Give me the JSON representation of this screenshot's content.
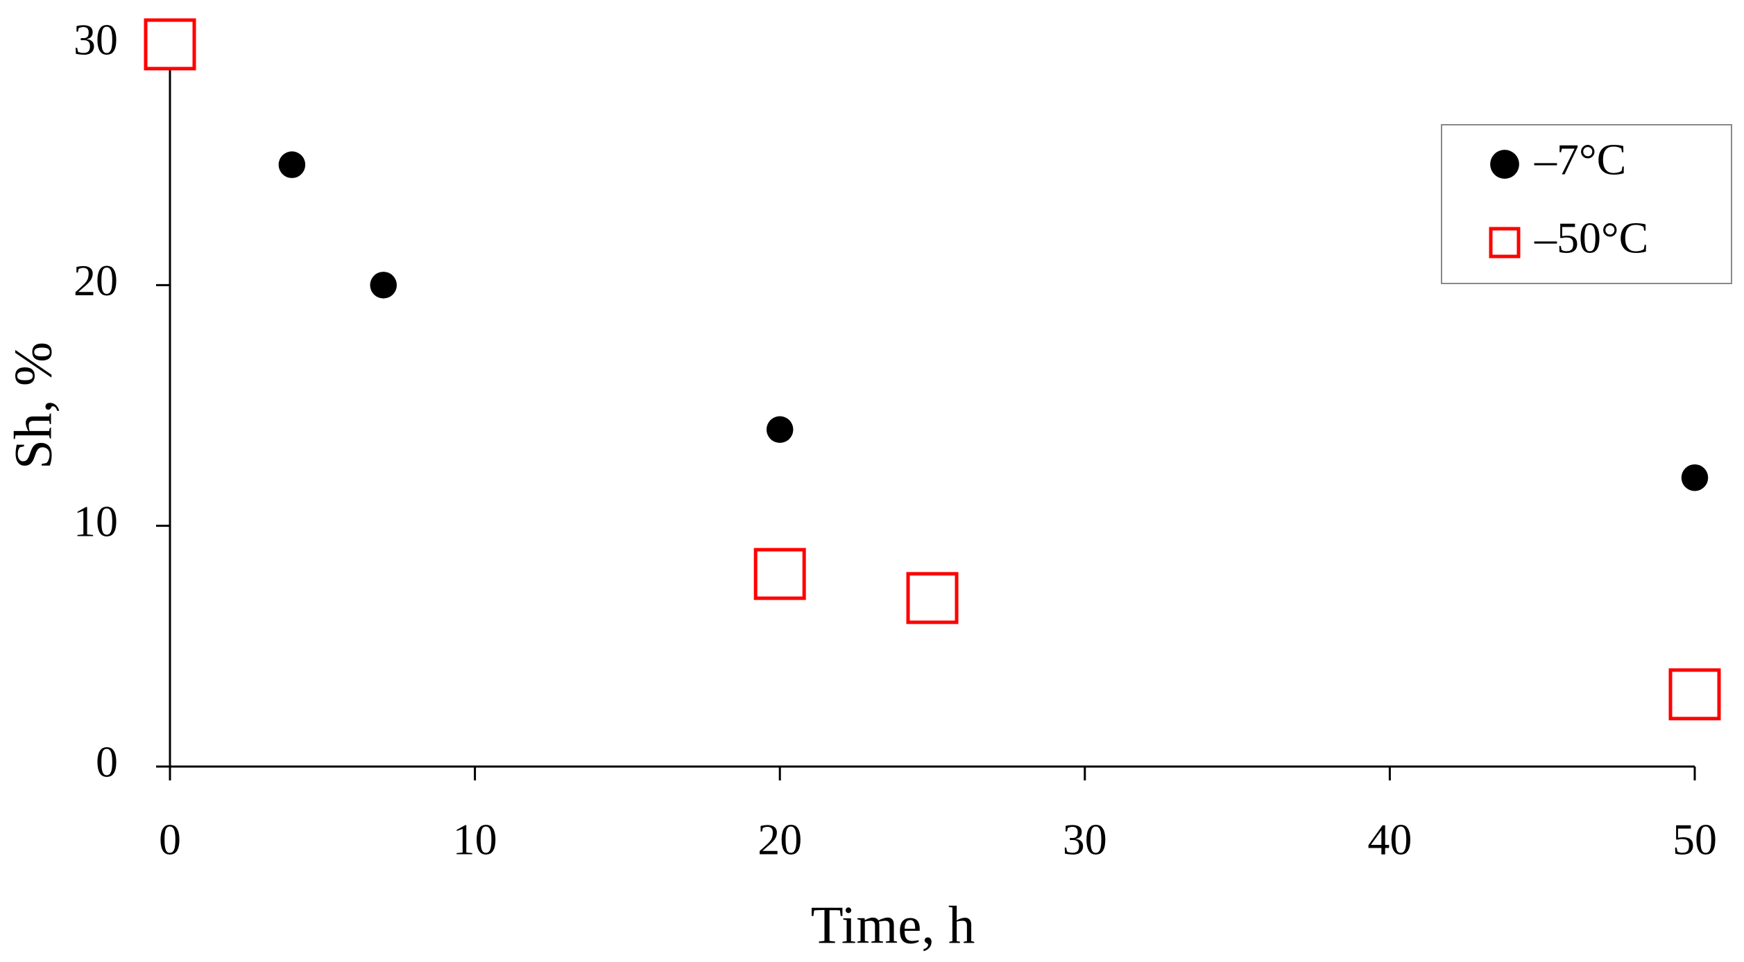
{
  "chart_data": {
    "type": "scatter",
    "x_label": "Time, h",
    "y_label": "Sh, %",
    "xlim": [
      0,
      50
    ],
    "xticks": [
      0,
      10,
      20,
      30,
      40,
      50
    ],
    "ylim": [
      0,
      30
    ],
    "yticks": [
      0,
      10,
      20,
      30
    ],
    "grid": false,
    "legend": "upper right",
    "series": [
      {
        "name": "–7°C",
        "color": "#000000",
        "marker": "circle",
        "x": [
          0,
          4,
          7,
          20,
          50
        ],
        "values": [
          30,
          25,
          20,
          14,
          12
        ]
      },
      {
        "name": "–50°C",
        "color": "#ff0000",
        "marker": "square",
        "x": [
          0,
          20,
          25,
          50
        ],
        "values": [
          30,
          8,
          7,
          3
        ]
      }
    ]
  }
}
